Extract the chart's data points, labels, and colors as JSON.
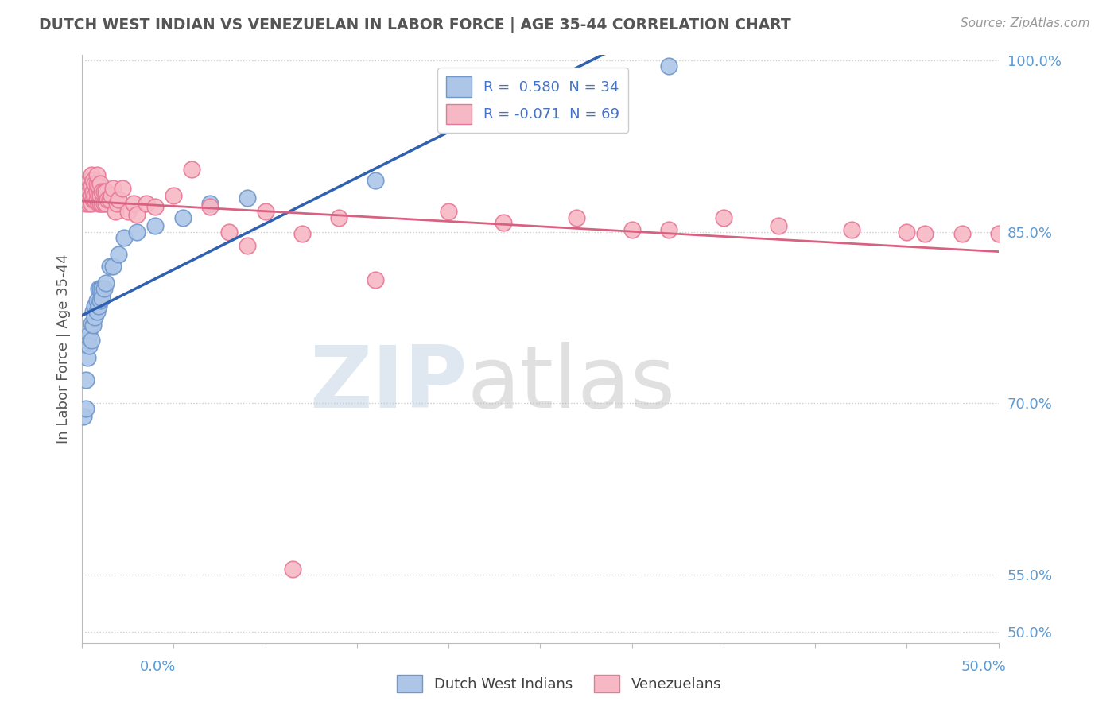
{
  "title": "DUTCH WEST INDIAN VS VENEZUELAN IN LABOR FORCE | AGE 35-44 CORRELATION CHART",
  "source": "Source: ZipAtlas.com",
  "ylabel": "In Labor Force | Age 35-44",
  "legend_label_blue": "Dutch West Indians",
  "legend_label_pink": "Venezuelans",
  "xmin": 0.0,
  "xmax": 0.5,
  "ymin": 0.49,
  "ymax": 1.005,
  "yticks": [
    0.5,
    0.55,
    0.7,
    0.85,
    1.0
  ],
  "ytick_labels": [
    "50.0%",
    "55.0%",
    "70.0%",
    "85.0%",
    "100.0%"
  ],
  "blue_R": 0.58,
  "blue_N": 34,
  "pink_R": -0.071,
  "pink_N": 69,
  "blue_color": "#adc6e8",
  "pink_color": "#f5b8c4",
  "blue_edge": "#7098cc",
  "pink_edge": "#e87898",
  "trend_blue": "#3060b0",
  "trend_pink": "#d86080",
  "background": "#ffffff",
  "grid_color": "#cccccc",
  "axis_color": "#bbbbbb",
  "title_color": "#555555",
  "source_color": "#999999",
  "tick_label_color": "#5b9bd5",
  "blue_dots_x": [
    0.001,
    0.002,
    0.002,
    0.003,
    0.003,
    0.004,
    0.004,
    0.005,
    0.005,
    0.006,
    0.006,
    0.007,
    0.007,
    0.008,
    0.008,
    0.009,
    0.009,
    0.01,
    0.01,
    0.011,
    0.011,
    0.012,
    0.013,
    0.015,
    0.017,
    0.02,
    0.023,
    0.03,
    0.04,
    0.055,
    0.07,
    0.09,
    0.16,
    0.32
  ],
  "blue_dots_y": [
    0.688,
    0.72,
    0.695,
    0.755,
    0.74,
    0.76,
    0.75,
    0.77,
    0.755,
    0.78,
    0.768,
    0.785,
    0.775,
    0.79,
    0.78,
    0.8,
    0.785,
    0.8,
    0.79,
    0.8,
    0.792,
    0.8,
    0.805,
    0.82,
    0.82,
    0.83,
    0.845,
    0.85,
    0.855,
    0.862,
    0.875,
    0.88,
    0.895,
    0.995
  ],
  "pink_dots_x": [
    0.001,
    0.002,
    0.002,
    0.003,
    0.003,
    0.004,
    0.004,
    0.004,
    0.005,
    0.005,
    0.005,
    0.005,
    0.006,
    0.006,
    0.006,
    0.007,
    0.007,
    0.007,
    0.008,
    0.008,
    0.008,
    0.008,
    0.009,
    0.009,
    0.009,
    0.01,
    0.01,
    0.01,
    0.011,
    0.011,
    0.012,
    0.012,
    0.013,
    0.013,
    0.014,
    0.015,
    0.016,
    0.017,
    0.018,
    0.019,
    0.02,
    0.022,
    0.025,
    0.028,
    0.03,
    0.035,
    0.04,
    0.05,
    0.06,
    0.07,
    0.08,
    0.09,
    0.1,
    0.12,
    0.14,
    0.16,
    0.2,
    0.23,
    0.27,
    0.3,
    0.32,
    0.35,
    0.38,
    0.42,
    0.45,
    0.46,
    0.48,
    0.5,
    0.115
  ],
  "pink_dots_y": [
    0.88,
    0.875,
    0.885,
    0.878,
    0.888,
    0.875,
    0.885,
    0.895,
    0.875,
    0.882,
    0.89,
    0.9,
    0.878,
    0.885,
    0.895,
    0.878,
    0.882,
    0.892,
    0.878,
    0.885,
    0.892,
    0.9,
    0.875,
    0.882,
    0.89,
    0.875,
    0.882,
    0.892,
    0.875,
    0.885,
    0.875,
    0.885,
    0.875,
    0.885,
    0.878,
    0.878,
    0.882,
    0.888,
    0.868,
    0.875,
    0.878,
    0.888,
    0.868,
    0.875,
    0.865,
    0.875,
    0.872,
    0.882,
    0.905,
    0.872,
    0.85,
    0.838,
    0.868,
    0.848,
    0.862,
    0.808,
    0.868,
    0.858,
    0.862,
    0.852,
    0.852,
    0.862,
    0.855,
    0.852,
    0.85,
    0.848,
    0.848,
    0.848,
    0.555
  ]
}
